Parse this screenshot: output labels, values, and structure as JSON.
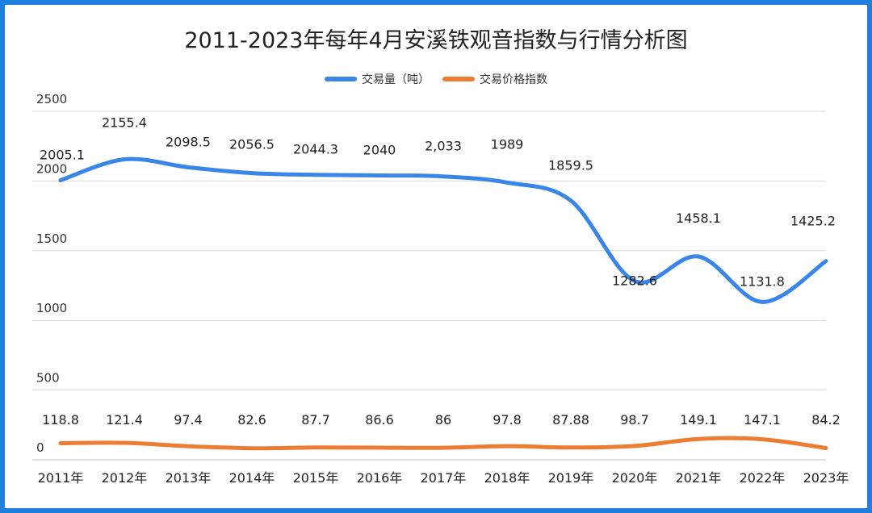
{
  "chart_data": {
    "type": "line",
    "title": "2011-2023年每年4月安溪铁观音指数与行情分析图",
    "categories": [
      "2011年",
      "2012年",
      "2013年",
      "2014年",
      "2015年",
      "2016年",
      "2017年",
      "2018年",
      "2019年",
      "2020年",
      "2021年",
      "2022年",
      "2023年"
    ],
    "ylim": [
      0,
      2500
    ],
    "yticks": [
      "0",
      "500",
      "1000",
      "1500",
      "2000",
      "2500"
    ],
    "legend_position": "top-center",
    "grid": true,
    "series": [
      {
        "name": "交易量（吨）",
        "color": "#3a86e8",
        "values": [
          2005.1,
          2155.4,
          2098.5,
          2056.5,
          2044.3,
          2040,
          2033,
          1989,
          1859.5,
          1282.6,
          1458.1,
          1131.8,
          1425.2
        ],
        "labels": [
          "2005.1",
          "2155.4",
          "2098.5",
          "2056.5",
          "2044.3",
          "2040",
          "2,033",
          "1989",
          "1859.5",
          "1282.6",
          "1458.1",
          "1131.8",
          "1425.2"
        ]
      },
      {
        "name": "交易价格指数",
        "color": "#ed7d31",
        "values": [
          118.8,
          121.4,
          97.4,
          82.6,
          87.7,
          86.6,
          86,
          97.8,
          87.88,
          98.7,
          149.1,
          147.1,
          84.2
        ],
        "labels": [
          "118.8",
          "121.4",
          "97.4",
          "82.6",
          "87.7",
          "86.6",
          "86",
          "97.8",
          "87.88",
          "98.7",
          "149.1",
          "147.1",
          "84.2"
        ]
      }
    ]
  }
}
